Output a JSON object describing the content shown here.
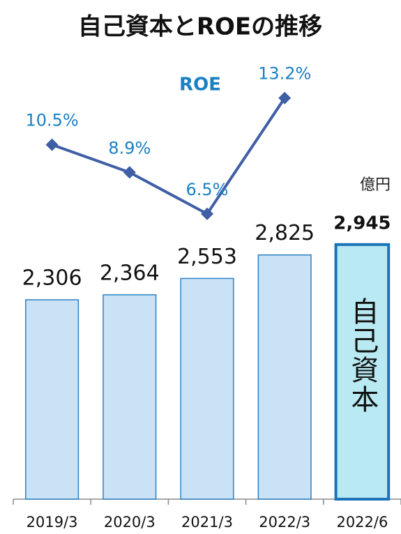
{
  "chart_data": {
    "type": "bar",
    "title": "自己資本とROEの推移",
    "unit": "億円",
    "categories": [
      "2019/3",
      "2020/3",
      "2021/3",
      "2022/3",
      "2022/6"
    ],
    "ylim": [
      0,
      4000
    ],
    "y2lim": [
      0,
      15
    ],
    "highlight": 4,
    "highlight_color": "#b9e9f2",
    "highlight_stroke": "#1a72b8",
    "series": [
      {
        "name": "自己資本",
        "type": "bar",
        "color": "#c9e2f6",
        "stroke": "#2b80c4",
        "values": [
          2306,
          2364,
          2553,
          2825,
          2945
        ],
        "value_labels": [
          "2,306",
          "2,364",
          "2,553",
          "2,825",
          "2,945"
        ]
      },
      {
        "name": "ROE",
        "type": "line",
        "axis": "y2",
        "color": "#3f5ea5",
        "label_color": "#1a80c4",
        "values": [
          10.5,
          8.9,
          6.5,
          13.2,
          null
        ],
        "value_labels": [
          "10.5%",
          "8.9%",
          "6.5%",
          "13.2%",
          null
        ]
      }
    ]
  }
}
